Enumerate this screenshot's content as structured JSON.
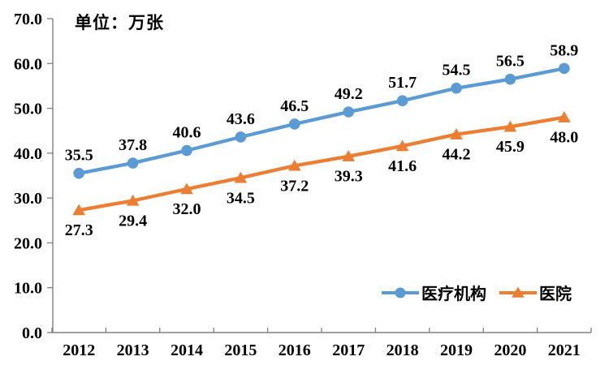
{
  "chart_data": {
    "type": "line",
    "unit_label": "单位：万张",
    "categories": [
      "2012",
      "2013",
      "2014",
      "2015",
      "2016",
      "2017",
      "2018",
      "2019",
      "2020",
      "2021"
    ],
    "series": [
      {
        "name": "医疗机构",
        "color": "#5B9BD5",
        "marker": "circle",
        "label_position": "above",
        "values": [
          35.5,
          37.8,
          40.6,
          43.6,
          46.5,
          49.2,
          51.7,
          54.5,
          56.5,
          58.9
        ]
      },
      {
        "name": "医院",
        "color": "#ED7D31",
        "marker": "triangle",
        "label_position": "below",
        "values": [
          27.3,
          29.4,
          32.0,
          34.5,
          37.2,
          39.3,
          41.6,
          44.2,
          45.9,
          48.0
        ]
      }
    ],
    "ylim": [
      0,
      70
    ],
    "ytick_step": 10,
    "ytick_labels": [
      "0.0",
      "10.0",
      "20.0",
      "30.0",
      "40.0",
      "50.0",
      "60.0",
      "70.0"
    ],
    "value_label_decimals": 1,
    "axis_color": "#808080",
    "text_color": "#000000",
    "grid": false,
    "legend_position": "inside-bottom-right"
  }
}
